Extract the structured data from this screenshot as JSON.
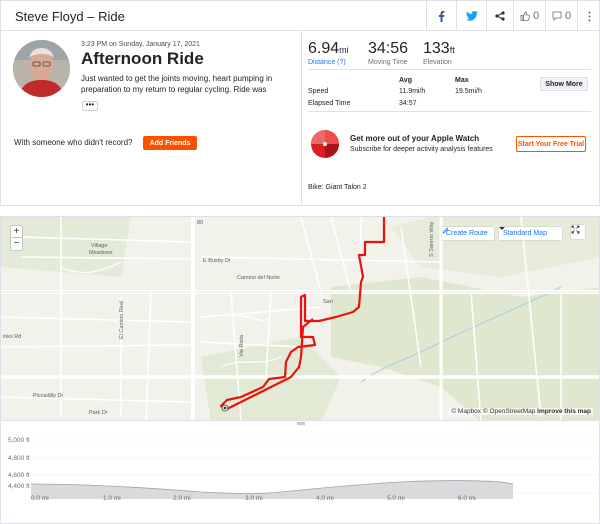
{
  "header": {
    "title": "Steve Floyd – Ride",
    "kudos_count": "0",
    "comments_count": "0",
    "icons": [
      "facebook-icon",
      "twitter-icon",
      "share-icon",
      "thumbs-up-icon",
      "comment-icon"
    ]
  },
  "activity": {
    "datetime": "3:23 PM on Sunday, January 17, 2021",
    "title": "Afternoon Ride",
    "description": "Just wanted to get the joints moving, heart pumping in preparation to my return to regular cycling. Ride was",
    "more_label": "•••",
    "record_question": "With someone who didn't record?",
    "add_friends_label": "Add Friends"
  },
  "stats": {
    "distance": {
      "value": "6.94",
      "unit": "mi",
      "label": "Distance (?)"
    },
    "moving_time": {
      "value": "34:56",
      "label": "Moving Time"
    },
    "elevation": {
      "value": "133",
      "unit": "ft",
      "label": "Elevation"
    }
  },
  "details": {
    "col_avg": "Avg",
    "col_max": "Max",
    "speed_label": "Speed",
    "speed_avg": "11.9mi/h",
    "speed_max": "19.5mi/h",
    "elapsed_label": "Elapsed Time",
    "elapsed_value": "34:57",
    "show_more_label": "Show More"
  },
  "promo": {
    "title": "Get more out of your Apple Watch",
    "subtitle": "Subscribe for deeper activity analysis features",
    "trial_label": "Start Your Free Trial"
  },
  "bike": "Bike: Giant Talon 2",
  "map": {
    "zoom_in": "+",
    "zoom_out": "−",
    "create_route": "Create Route",
    "map_style": "Standard Map",
    "attribution_mapbox": "© Mapbox",
    "attribution_osm": "© OpenStreetMap",
    "improve": "Improve this map",
    "labels": {
      "village": "Village",
      "meadows": "Meadows",
      "bushy": "E Busby Dr",
      "camino": "Camino del Norte",
      "elcamino": "El Camino Real",
      "viarista": "Via Rista",
      "piccadilly": "Piccadilly Dr",
      "links": "inks Rd",
      "park": "Park Dr",
      "san": "San",
      "sareno": "S Sareno Way",
      "num": "80"
    },
    "route_color": "#e8130e"
  },
  "elevation_chart": {
    "y_labels": [
      "5,000 ft",
      "4,800 ft",
      "4,600 ft",
      "4,400 ft"
    ],
    "x_labels": [
      "0.0 mi",
      "1.0 mi",
      "2.0 mi",
      "3.0 mi",
      "4.0 mi",
      "5.0 mi",
      "6.0 mi"
    ]
  }
}
